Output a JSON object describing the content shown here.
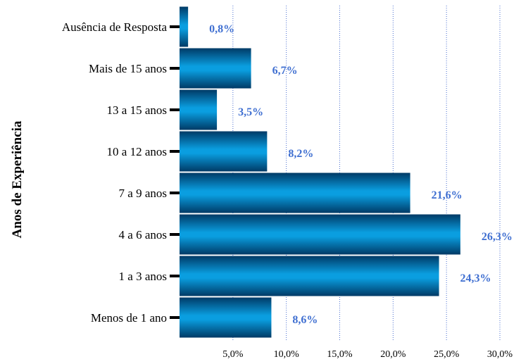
{
  "chart_data": {
    "type": "bar",
    "orientation": "horizontal",
    "ylabel": "Anos de Experiência",
    "xlabel": "",
    "xlim": [
      0,
      30
    ],
    "xticks": [
      "5,0%",
      "10,0%",
      "15,0%",
      "20,0%",
      "25,0%",
      "30,0%"
    ],
    "grid": "vertical-dotted",
    "categories": [
      "Ausência de Resposta",
      "Mais de 15 anos",
      "13 a 15 anos",
      "10 a 12 anos",
      "7 a 9 anos",
      "4 a 6 anos",
      "1 a 3 anos",
      "Menos de 1 ano"
    ],
    "values": [
      0.8,
      6.7,
      3.5,
      8.2,
      21.6,
      26.3,
      24.3,
      8.6
    ],
    "value_labels": [
      "0,8%",
      "6,7%",
      "3,5%",
      "8,2%",
      "21,6%",
      "26,3%",
      "24,3%",
      "8,6%"
    ],
    "colors": {
      "bar_dark": "#003a66",
      "bar_light": "#0a9ee0",
      "value_label": "#3f6fd1",
      "grid": "#4a6fd0"
    }
  }
}
